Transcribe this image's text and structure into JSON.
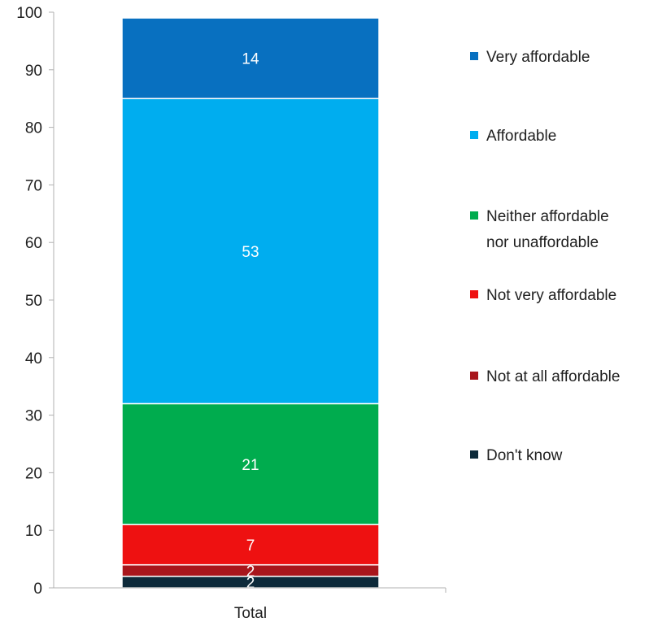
{
  "chart_data": {
    "type": "bar",
    "stacked": true,
    "categories": [
      "Total"
    ],
    "ylim": [
      0,
      100
    ],
    "yticks": [
      0,
      10,
      20,
      30,
      40,
      50,
      60,
      70,
      80,
      90,
      100
    ],
    "grid": false,
    "legend_position": "right",
    "series": [
      {
        "name": "Don't know",
        "values": [
          2
        ],
        "color": "#0d2a3a",
        "label": "2"
      },
      {
        "name": "Not at all affordable",
        "values": [
          2
        ],
        "color": "#a8161c",
        "label": "2"
      },
      {
        "name": "Not very affordable",
        "values": [
          7
        ],
        "color": "#ee1111",
        "label": "7"
      },
      {
        "name": "Neither affordable nor unaffordable",
        "values": [
          21
        ],
        "color": "#00ac4e",
        "label": "21",
        "legend_lines": [
          "Neither affordable",
          "nor unaffordable"
        ]
      },
      {
        "name": "Affordable",
        "values": [
          53
        ],
        "color": "#00adef",
        "label": "53"
      },
      {
        "name": "Very affordable",
        "values": [
          14
        ],
        "color": "#0870c0",
        "label": "14"
      }
    ],
    "legend_order": [
      "Very affordable",
      "Affordable",
      "Neither affordable nor unaffordable",
      "Not very affordable",
      "Not at all affordable",
      "Don't know"
    ]
  }
}
